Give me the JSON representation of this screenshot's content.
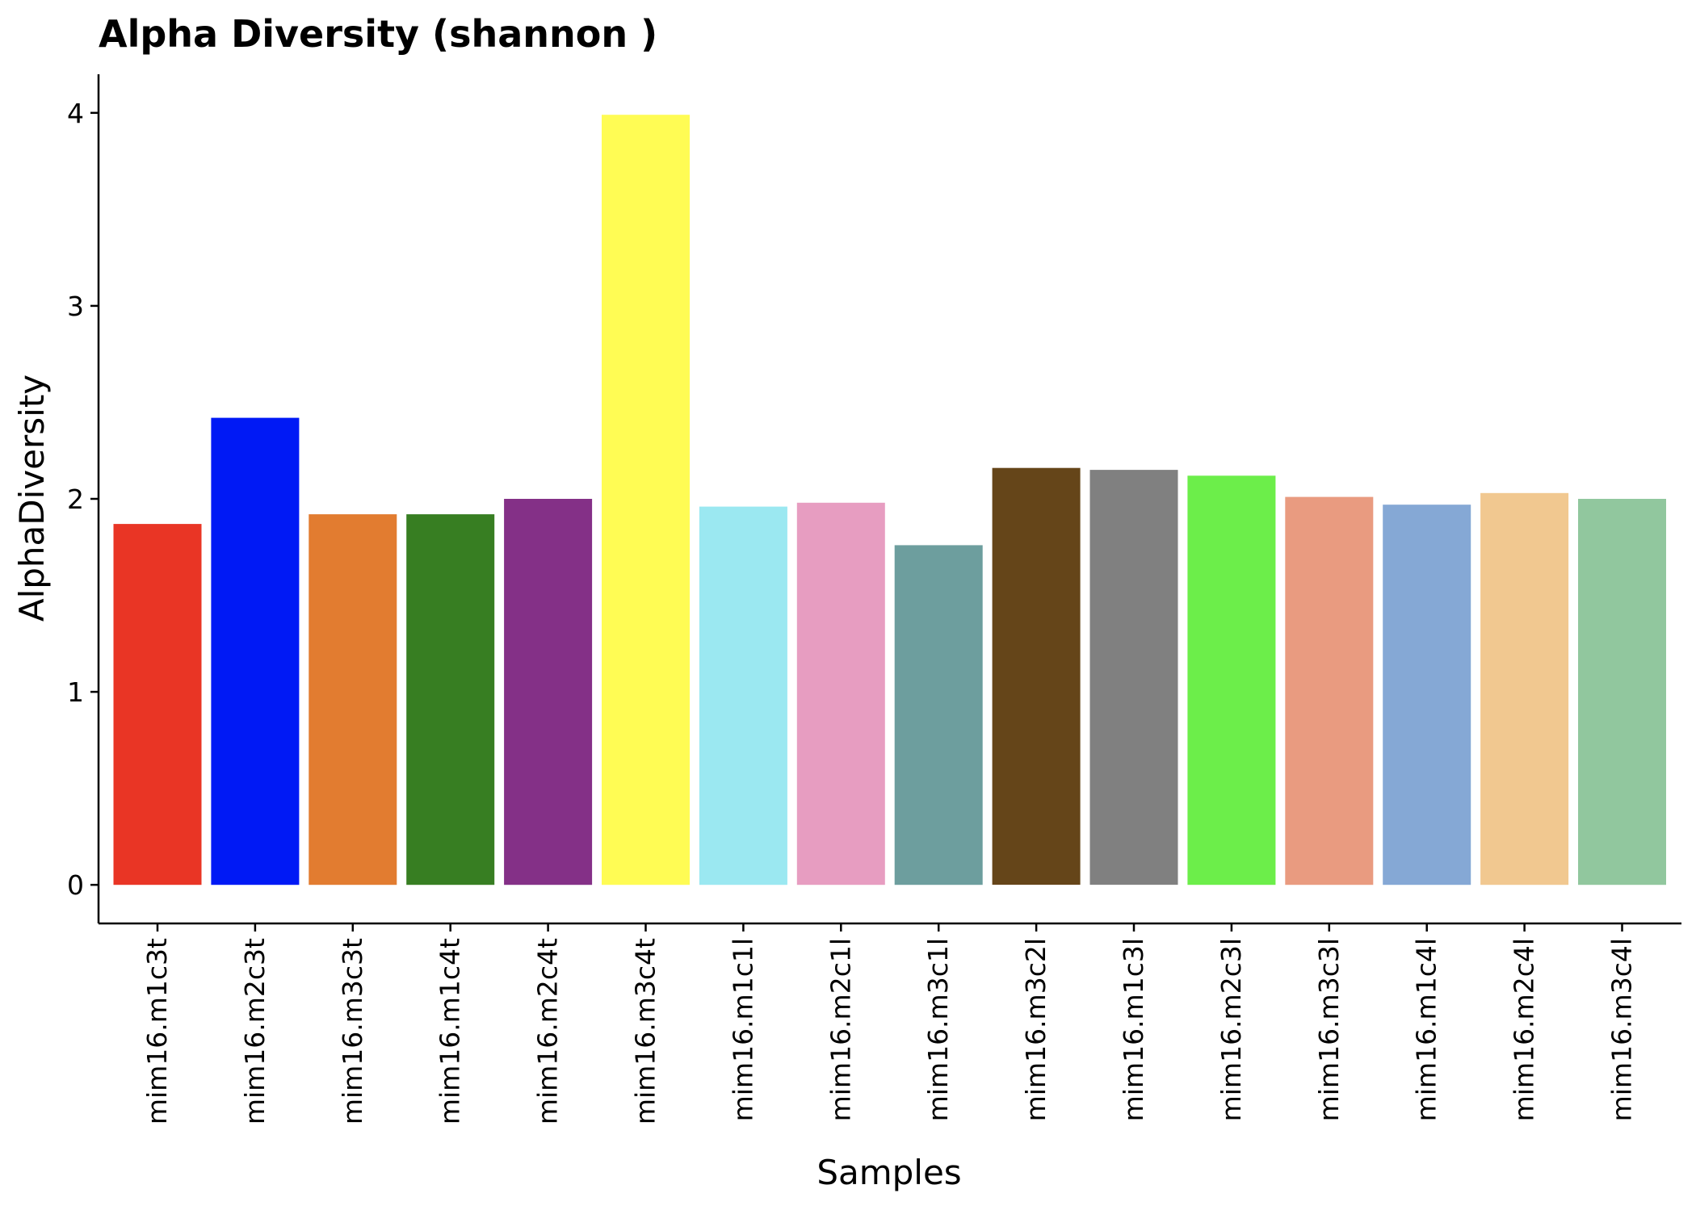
{
  "chart_data": {
    "type": "bar",
    "title": "Alpha Diversity (shannon )",
    "xlabel": "Samples",
    "ylabel": "AlphaDiversity",
    "ylim": [
      -0.2,
      4.2
    ],
    "yticks": [
      0,
      1,
      2,
      3,
      4
    ],
    "grid": false,
    "legend": "none",
    "categories": [
      "mim16.m1c3t",
      "mim16.m2c3t",
      "mim16.m3c3t",
      "mim16.m1c4t",
      "mim16.m2c4t",
      "mim16.m3c4t",
      "mim16.m1c1l",
      "mim16.m2c1l",
      "mim16.m3c1l",
      "mim16.m3c2l",
      "mim16.m1c3l",
      "mim16.m2c3l",
      "mim16.m3c3l",
      "mim16.m1c4l",
      "mim16.m2c4l",
      "mim16.m3c4l"
    ],
    "values": [
      1.87,
      2.42,
      1.92,
      1.92,
      2.0,
      3.99,
      1.96,
      1.98,
      1.76,
      2.16,
      2.15,
      2.12,
      2.01,
      1.97,
      2.03,
      2.0
    ],
    "colors": [
      "#E93525",
      "#0019F5",
      "#E27C30",
      "#377E22",
      "#843087",
      "#FFFC54",
      "#9BE8F1",
      "#E79DC1",
      "#6D9E9E",
      "#654519",
      "#808080",
      "#6CEE4A",
      "#E99B80",
      "#85A8D5",
      "#F1C890",
      "#91C79E"
    ]
  }
}
